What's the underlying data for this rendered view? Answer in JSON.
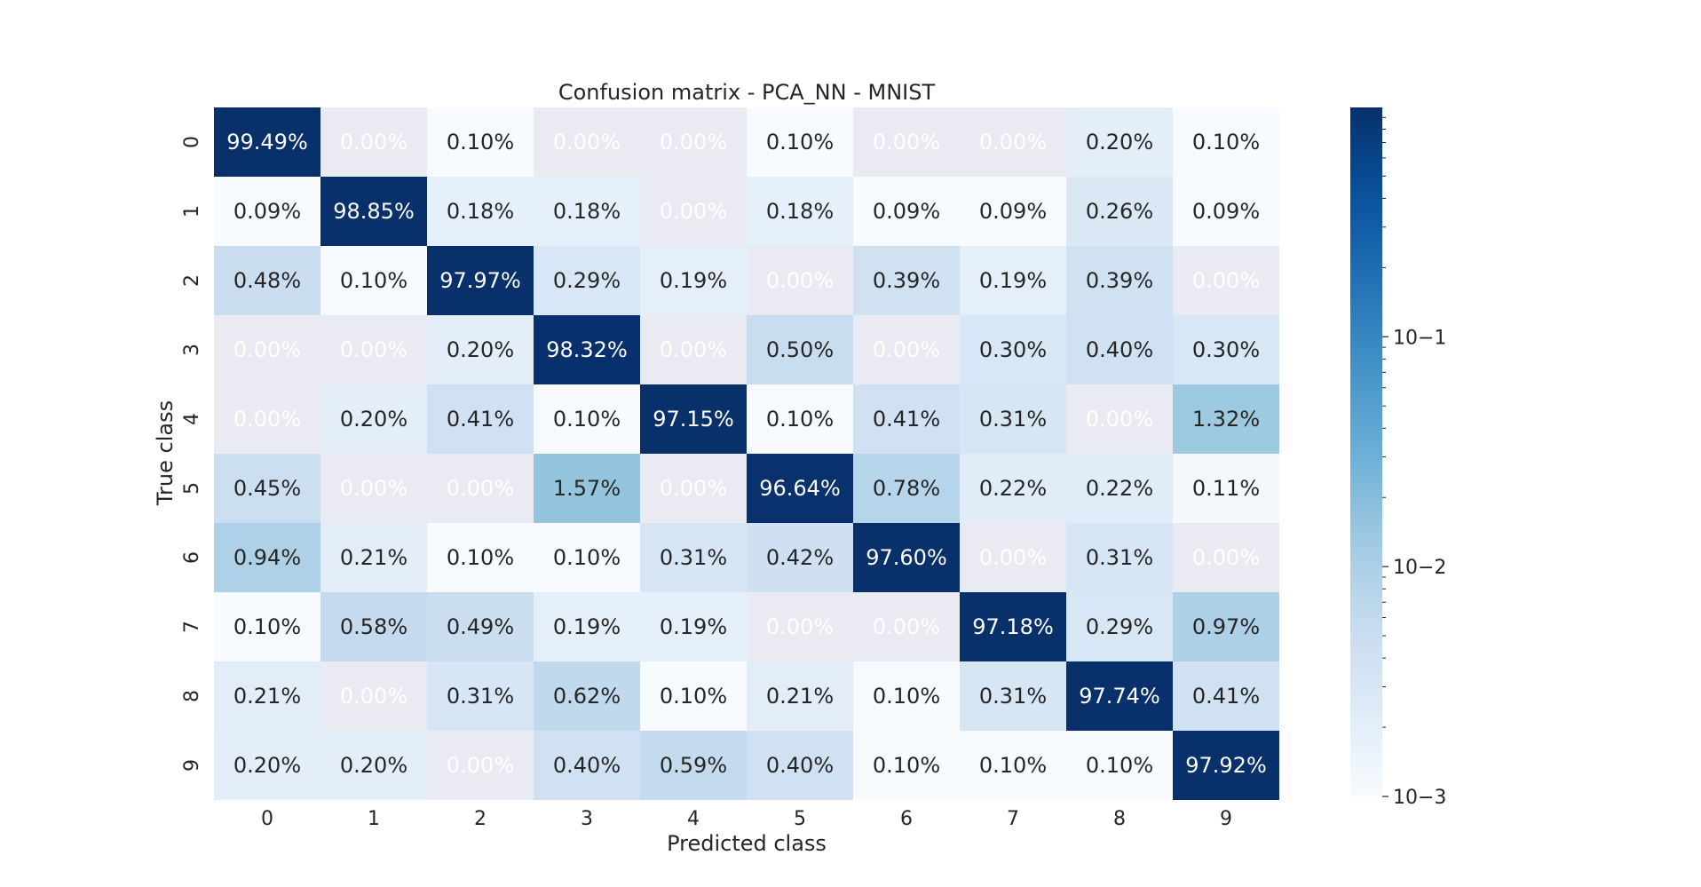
{
  "chart_data": {
    "type": "heatmap",
    "title": "Confusion matrix - PCA_NN - MNIST",
    "xlabel": "Predicted class",
    "ylabel": "True class",
    "x_categories": [
      "0",
      "1",
      "2",
      "3",
      "4",
      "5",
      "6",
      "7",
      "8",
      "9"
    ],
    "y_categories": [
      "0",
      "1",
      "2",
      "3",
      "4",
      "5",
      "6",
      "7",
      "8",
      "9"
    ],
    "values": [
      [
        99.49,
        0.0,
        0.1,
        0.0,
        0.0,
        0.1,
        0.0,
        0.0,
        0.2,
        0.1
      ],
      [
        0.09,
        98.85,
        0.18,
        0.18,
        0.0,
        0.18,
        0.09,
        0.09,
        0.26,
        0.09
      ],
      [
        0.48,
        0.1,
        97.97,
        0.29,
        0.19,
        0.0,
        0.39,
        0.19,
        0.39,
        0.0
      ],
      [
        0.0,
        0.0,
        0.2,
        98.32,
        0.0,
        0.5,
        0.0,
        0.3,
        0.4,
        0.3
      ],
      [
        0.0,
        0.2,
        0.41,
        0.1,
        97.15,
        0.1,
        0.41,
        0.31,
        0.0,
        1.32
      ],
      [
        0.45,
        0.0,
        0.0,
        1.57,
        0.0,
        96.64,
        0.78,
        0.22,
        0.22,
        0.11
      ],
      [
        0.94,
        0.21,
        0.1,
        0.1,
        0.31,
        0.42,
        97.6,
        0.0,
        0.31,
        0.0
      ],
      [
        0.1,
        0.58,
        0.49,
        0.19,
        0.19,
        0.0,
        0.0,
        97.18,
        0.29,
        0.97
      ],
      [
        0.21,
        0.0,
        0.31,
        0.62,
        0.1,
        0.21,
        0.1,
        0.31,
        97.74,
        0.41
      ],
      [
        0.2,
        0.2,
        0.0,
        0.4,
        0.59,
        0.4,
        0.1,
        0.1,
        0.1,
        97.92
      ]
    ],
    "value_format": "percent",
    "color_scale": "log",
    "colormap": "Blues",
    "colorbar_range": [
      0.001,
      0.9949
    ],
    "colorbar_major_ticks": [
      {
        "value": 0.001,
        "label": "10−3"
      },
      {
        "value": 0.01,
        "label": "10−2"
      },
      {
        "value": 0.1,
        "label": "10−1"
      }
    ],
    "zero_cell_color": "#eaeaf2",
    "legend_position": "right"
  }
}
